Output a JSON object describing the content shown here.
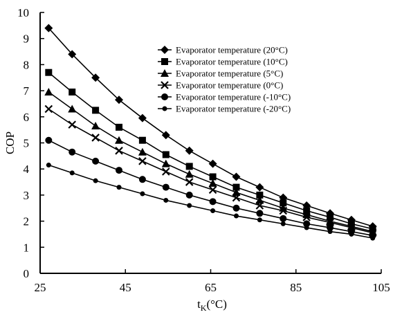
{
  "chart_data": {
    "type": "line",
    "title": "",
    "xlabel_main": "t",
    "xlabel_sub": "K",
    "xlabel_unit": "(°C)",
    "ylabel": "COP",
    "xlim": [
      25,
      105
    ],
    "ylim": [
      0,
      10
    ],
    "x_ticks": [
      25,
      45,
      65,
      85,
      105
    ],
    "y_ticks": [
      0,
      1,
      2,
      3,
      4,
      5,
      6,
      7,
      8,
      9,
      10
    ],
    "grid": false,
    "legend_position": "top-right",
    "x": [
      27,
      32.5,
      38,
      43.5,
      49,
      54.5,
      60,
      65.5,
      71,
      76.5,
      82,
      87.5,
      93,
      98,
      103
    ],
    "series": [
      {
        "name": "Evaporator temperature (20°C)",
        "marker": "diamond",
        "values": [
          9.4,
          8.4,
          7.5,
          6.65,
          5.95,
          5.3,
          4.7,
          4.2,
          3.7,
          3.3,
          2.9,
          2.6,
          2.3,
          2.05,
          1.8
        ]
      },
      {
        "name": "Evaporator temperature (10°C)",
        "marker": "square",
        "values": [
          7.7,
          6.95,
          6.25,
          5.6,
          5.1,
          4.55,
          4.1,
          3.7,
          3.3,
          3.0,
          2.7,
          2.4,
          2.15,
          1.9,
          1.7
        ]
      },
      {
        "name": "Evaporator temperature (5°C)",
        "marker": "triangle",
        "values": [
          6.95,
          6.3,
          5.65,
          5.1,
          4.65,
          4.2,
          3.8,
          3.45,
          3.1,
          2.8,
          2.5,
          2.25,
          2.0,
          1.8,
          1.6
        ]
      },
      {
        "name": "Evaporator temperature (0°C)",
        "marker": "x",
        "values": [
          6.3,
          5.7,
          5.2,
          4.7,
          4.3,
          3.9,
          3.5,
          3.2,
          2.9,
          2.6,
          2.4,
          2.15,
          1.95,
          1.75,
          1.55
        ]
      },
      {
        "name": "Evaporator temperature (-10°C)",
        "marker": "circle",
        "values": [
          5.1,
          4.65,
          4.3,
          3.95,
          3.6,
          3.3,
          3.0,
          2.75,
          2.5,
          2.3,
          2.1,
          1.9,
          1.75,
          1.6,
          1.45
        ]
      },
      {
        "name": "Evaporator temperature (-20°C)",
        "marker": "dot",
        "values": [
          4.15,
          3.85,
          3.55,
          3.3,
          3.05,
          2.8,
          2.6,
          2.4,
          2.2,
          2.05,
          1.9,
          1.75,
          1.6,
          1.5,
          1.35
        ]
      }
    ]
  }
}
